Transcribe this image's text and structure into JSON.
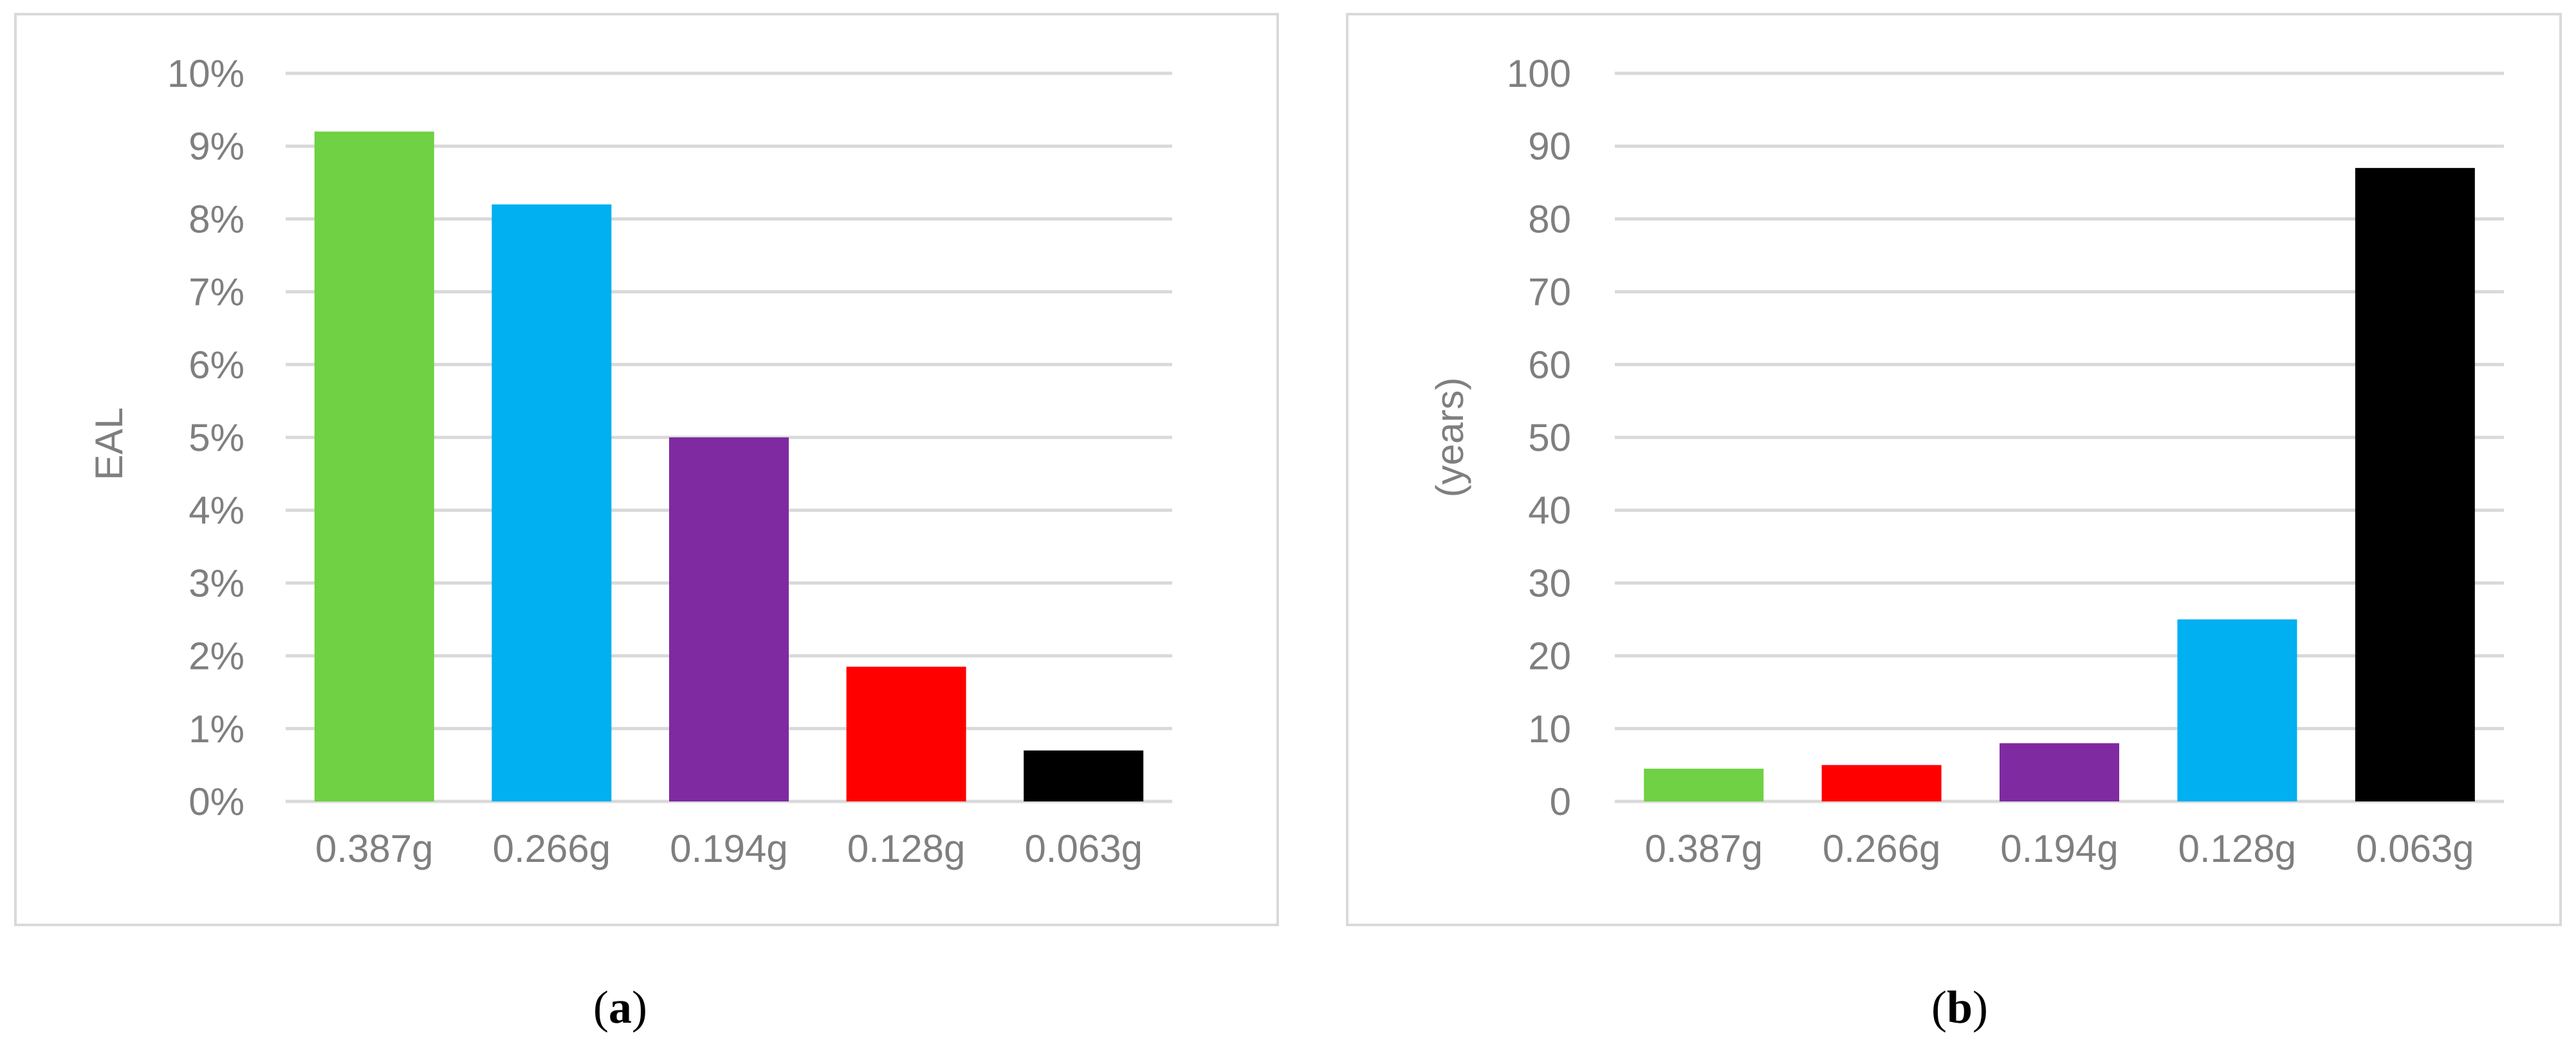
{
  "chart_data": [
    {
      "type": "bar",
      "categories": [
        "0.387g",
        "0.266g",
        "0.194g",
        "0.128g",
        "0.063g"
      ],
      "values": [
        0.092,
        0.082,
        0.05,
        0.0185,
        0.007
      ],
      "colors": [
        "#6fd143",
        "#00b0f0",
        "#7f2aa0",
        "#ff0000",
        "#000000"
      ],
      "ylabel": "EAL",
      "xlabel": "",
      "ylim": [
        0,
        0.1
      ],
      "ytick_values": [
        0,
        0.01,
        0.02,
        0.03,
        0.04,
        0.05,
        0.06,
        0.07,
        0.08,
        0.09,
        0.1
      ],
      "ytick_labels": [
        "0%",
        "1%",
        "2%",
        "3%",
        "4%",
        "5%",
        "6%",
        "7%",
        "8%",
        "9%",
        "10%"
      ],
      "grid": true,
      "caption_letter": "a"
    },
    {
      "type": "bar",
      "categories": [
        "0.387g",
        "0.266g",
        "0.194g",
        "0.128g",
        "0.063g"
      ],
      "values": [
        4.5,
        5,
        8,
        25,
        87
      ],
      "colors": [
        "#6fd143",
        "#ff0000",
        "#7f2aa0",
        "#00b0f0",
        "#000000"
      ],
      "ylabel": "(years)",
      "xlabel": "",
      "ylim": [
        0,
        100
      ],
      "ytick_values": [
        0,
        10,
        20,
        30,
        40,
        50,
        60,
        70,
        80,
        90,
        100
      ],
      "ytick_labels": [
        "0",
        "10",
        "20",
        "30",
        "40",
        "50",
        "60",
        "70",
        "80",
        "90",
        "100"
      ],
      "grid": true,
      "caption_letter": "b"
    }
  ]
}
